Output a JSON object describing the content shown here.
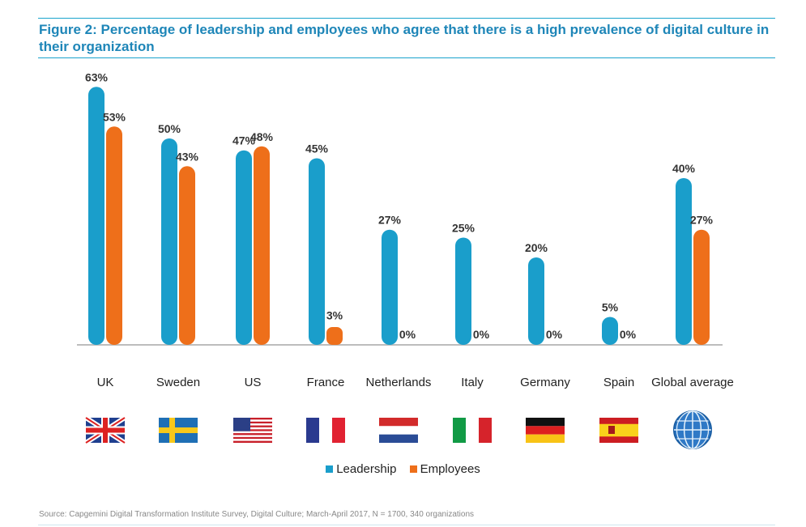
{
  "header": {
    "title": "Figure 2: Percentage of leadership and employees who agree that there is a high prevalence of  digital culture in their organization"
  },
  "legend": {
    "items": [
      {
        "label": "Leadership",
        "color": "#1a9ecb"
      },
      {
        "label": "Employees",
        "color": "#ee6f1a"
      }
    ]
  },
  "source": "Source: Capgemini Digital Transformation Institute Survey, Digital Culture; March-April 2017, N = 1700, 340 organizations",
  "chart_data": {
    "type": "bar",
    "categories": [
      "UK",
      "Sweden",
      "US",
      "France",
      "Netherlands",
      "Italy",
      "Germany",
      "Spain",
      "Global average"
    ],
    "series": [
      {
        "name": "Leadership",
        "color": "#1a9ecb",
        "values": [
          63,
          50,
          47,
          45,
          27,
          25,
          20,
          5,
          40
        ],
        "labels": [
          "63%",
          "50%",
          "47%",
          "45%",
          "27%",
          "25%",
          "20%",
          "5%",
          "40%"
        ]
      },
      {
        "name": "Employees",
        "color": "#ee6f1a",
        "values": [
          53,
          43,
          48,
          3,
          0,
          0,
          0,
          0,
          27
        ],
        "labels": [
          "53%",
          "43%",
          "48%",
          "3%",
          "0%",
          "0%",
          "0%",
          "0%",
          "27%"
        ]
      }
    ],
    "ylim": [
      0,
      65
    ],
    "grid": false,
    "legend_position": "bottom-center",
    "flag_icons": [
      "uk-flag-icon",
      "sweden-flag-icon",
      "us-flag-icon",
      "france-flag-icon",
      "netherlands-flag-icon",
      "italy-flag-icon",
      "germany-flag-icon",
      "spain-flag-icon",
      "globe-icon"
    ]
  }
}
